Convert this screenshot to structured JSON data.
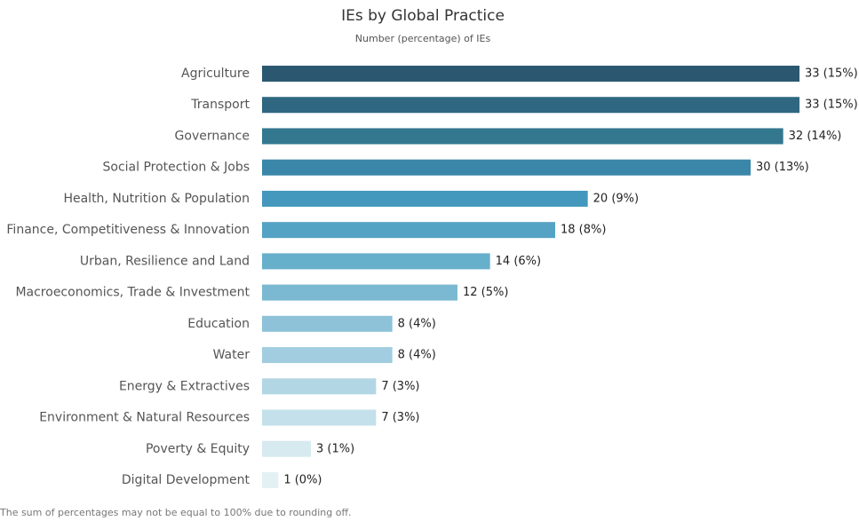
{
  "chart_data": {
    "type": "bar",
    "orientation": "horizontal",
    "title": "IEs by Global Practice",
    "subtitle": "Number (percentage) of IEs",
    "footnote": "The sum of percentages may not be equal to 100% due to rounding off.",
    "categories": [
      "Agriculture",
      "Transport",
      "Governance",
      "Social Protection & Jobs",
      "Health, Nutrition & Population",
      "Finance, Competitiveness & Innovation",
      "Urban, Resilience and Land",
      "Macroeconomics, Trade & Investment",
      "Education",
      "Water",
      "Energy & Extractives",
      "Environment & Natural Resources",
      "Poverty & Equity",
      "Digital Development"
    ],
    "values": [
      33,
      33,
      32,
      30,
      20,
      18,
      14,
      12,
      8,
      8,
      7,
      7,
      3,
      1
    ],
    "value_labels": [
      "33 (15%)",
      "33 (15%)",
      "32 (14%)",
      "30 (13%)",
      "20 (9%)",
      "18 (8%)",
      "14 (6%)",
      "12 (5%)",
      "8 (4%)",
      "8 (4%)",
      "7 (3%)",
      "7 (3%)",
      "3 (1%)",
      "1 (0%)"
    ],
    "colors": [
      "#2b5870",
      "#2f6780",
      "#33788f",
      "#3a87a9",
      "#4498bd",
      "#55a3c4",
      "#67b0cc",
      "#7bb9d2",
      "#8ec2d8",
      "#a2cde0",
      "#b2d6e4",
      "#c4e0ea",
      "#d6eaf0",
      "#e3f1f4"
    ]
  }
}
